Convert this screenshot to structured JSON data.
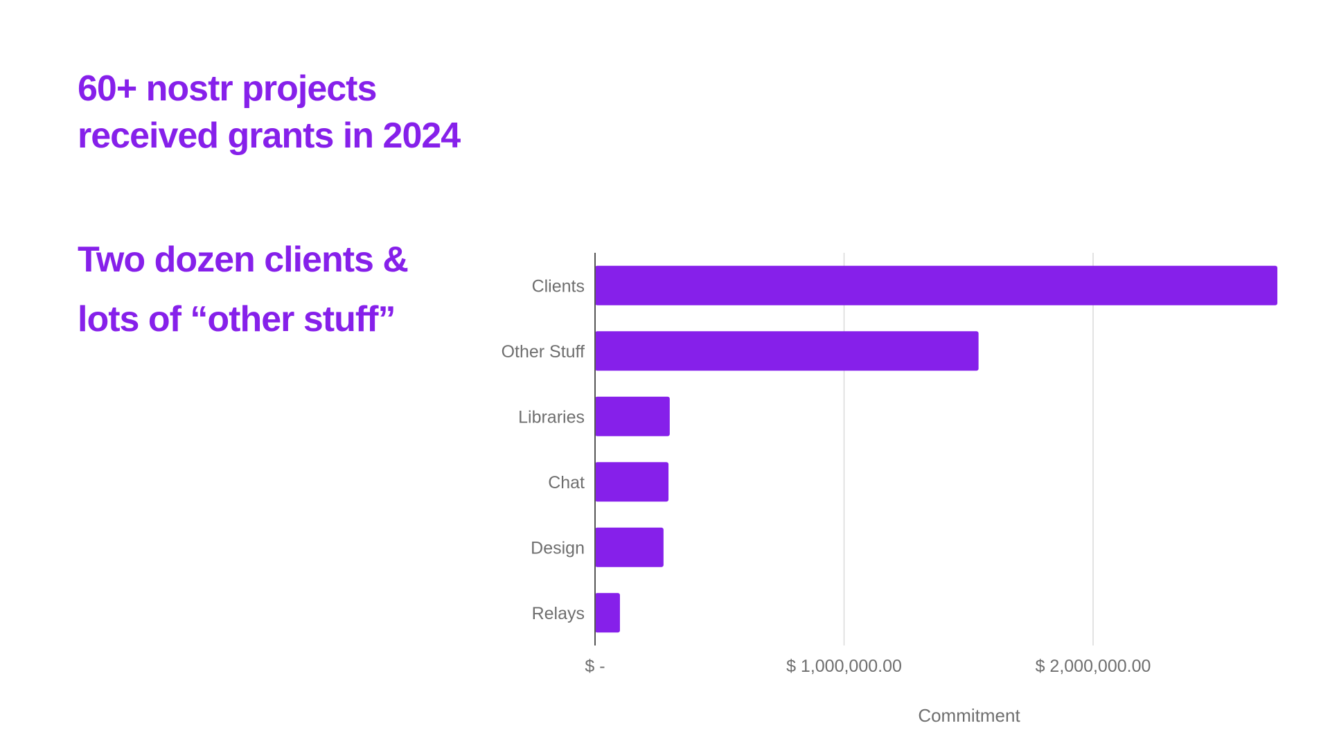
{
  "slide": {
    "heading_lines": [
      "60+ nostr projects",
      "received grants in 2024"
    ],
    "subheading_lines": [
      "Two dozen clients &",
      "lots of “other stuff”"
    ],
    "accent_color": "#8620EA"
  },
  "chart_data": {
    "type": "bar",
    "orientation": "horizontal",
    "categories": [
      "Clients",
      "Other Stuff",
      "Libraries",
      "Chat",
      "Design",
      "Relays"
    ],
    "values": [
      2740000,
      1540000,
      300000,
      295000,
      275000,
      100000
    ],
    "title": "",
    "xlabel": "Commitment",
    "ylabel": "",
    "xlim": [
      0,
      2800000
    ],
    "x_ticks": [
      0,
      1000000,
      2000000
    ],
    "x_tick_labels": [
      "$ -",
      "$ 1,000,000.00",
      "$ 2,000,000.00"
    ],
    "grid": true,
    "legend": "none",
    "bar_color": "#8620EA"
  }
}
